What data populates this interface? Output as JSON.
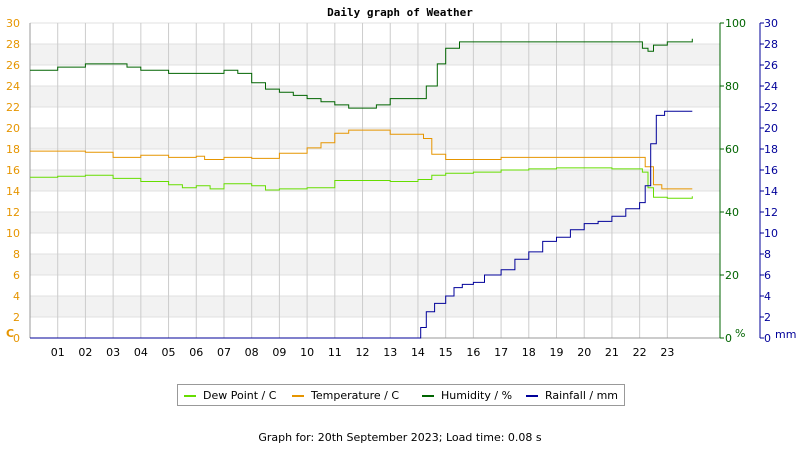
{
  "chart_data": {
    "type": "line",
    "title": "Daily graph of Weather",
    "xlim": [
      -1,
      23.9
    ],
    "x_ticks": [
      "01",
      "02",
      "03",
      "04",
      "05",
      "06",
      "07",
      "08",
      "09",
      "10",
      "11",
      "12",
      "13",
      "14",
      "15",
      "16",
      "17",
      "18",
      "19",
      "20",
      "21",
      "22",
      "23"
    ],
    "left_axis": {
      "unit": "C",
      "ylim": [
        0,
        30
      ],
      "ticks": [
        0,
        2,
        4,
        6,
        8,
        10,
        12,
        14,
        16,
        18,
        20,
        22,
        24,
        26,
        28,
        30
      ],
      "color": "#e69500"
    },
    "humidity_axis": {
      "unit": "%",
      "ylim": [
        0,
        100
      ],
      "ticks": [
        0,
        20,
        40,
        60,
        80,
        100
      ],
      "color": "#006400"
    },
    "rain_axis": {
      "unit": "mm",
      "ylim": [
        0,
        30
      ],
      "ticks": [
        0,
        2,
        4,
        6,
        8,
        10,
        12,
        14,
        16,
        18,
        20,
        22,
        24,
        26,
        28,
        30
      ],
      "color": "#000099"
    },
    "series": [
      {
        "name": "Dew Point / C",
        "axis": "left",
        "color": "#66dd00",
        "points": [
          [
            -1,
            15.3
          ],
          [
            0,
            15.4
          ],
          [
            1,
            15.5
          ],
          [
            2,
            15.2
          ],
          [
            3,
            14.9
          ],
          [
            4,
            14.6
          ],
          [
            4.5,
            14.3
          ],
          [
            5,
            14.5
          ],
          [
            5.5,
            14.2
          ],
          [
            6,
            14.7
          ],
          [
            7,
            14.5
          ],
          [
            7.5,
            14.1
          ],
          [
            8,
            14.2
          ],
          [
            9,
            14.3
          ],
          [
            10,
            15
          ],
          [
            11,
            15
          ],
          [
            12,
            14.9
          ],
          [
            13,
            15.1
          ],
          [
            13.5,
            15.5
          ],
          [
            14,
            15.7
          ],
          [
            14.5,
            15.7
          ],
          [
            15,
            15.8
          ],
          [
            16,
            16
          ],
          [
            17,
            16.1
          ],
          [
            18,
            16.2
          ],
          [
            19,
            16.2
          ],
          [
            20,
            16.1
          ],
          [
            21,
            16.1
          ],
          [
            21.1,
            15.8
          ],
          [
            21.3,
            14.3
          ],
          [
            21.5,
            13.4
          ],
          [
            22,
            13.3
          ],
          [
            22.9,
            13.5
          ]
        ]
      },
      {
        "name": "Temperature / C",
        "axis": "left",
        "color": "#e69500",
        "points": [
          [
            -1,
            17.8
          ],
          [
            0,
            17.8
          ],
          [
            1,
            17.7
          ],
          [
            2,
            17.2
          ],
          [
            3,
            17.4
          ],
          [
            4,
            17.2
          ],
          [
            5,
            17.3
          ],
          [
            5.3,
            17.0
          ],
          [
            6,
            17.2
          ],
          [
            7,
            17.1
          ],
          [
            8,
            17.6
          ],
          [
            9,
            18.1
          ],
          [
            9.5,
            18.6
          ],
          [
            10,
            19.5
          ],
          [
            10.5,
            19.8
          ],
          [
            11,
            19.8
          ],
          [
            12,
            19.4
          ],
          [
            13,
            19.4
          ],
          [
            13.2,
            19.0
          ],
          [
            13.5,
            17.5
          ],
          [
            14,
            17.0
          ],
          [
            15,
            17.0
          ],
          [
            16,
            17.2
          ],
          [
            17,
            17.2
          ],
          [
            18,
            17.2
          ],
          [
            19,
            17.2
          ],
          [
            20,
            17.2
          ],
          [
            21,
            17.2
          ],
          [
            21.2,
            16.3
          ],
          [
            21.5,
            14.6
          ],
          [
            21.8,
            14.2
          ],
          [
            22.9,
            14.2
          ]
        ]
      },
      {
        "name": "Humidity / %",
        "axis": "humidity",
        "color": "#006400",
        "points": [
          [
            -1,
            85
          ],
          [
            0,
            86
          ],
          [
            1,
            87
          ],
          [
            2,
            87
          ],
          [
            2.5,
            86
          ],
          [
            3,
            85
          ],
          [
            4,
            84
          ],
          [
            5,
            84
          ],
          [
            6,
            85
          ],
          [
            6.5,
            84
          ],
          [
            7,
            81
          ],
          [
            7.5,
            79
          ],
          [
            8,
            78
          ],
          [
            8.5,
            77
          ],
          [
            9,
            76
          ],
          [
            9.5,
            75
          ],
          [
            10,
            74
          ],
          [
            10.5,
            73
          ],
          [
            11,
            73
          ],
          [
            11.5,
            74
          ],
          [
            12,
            76
          ],
          [
            13,
            76
          ],
          [
            13.3,
            80
          ],
          [
            13.7,
            87
          ],
          [
            14,
            92
          ],
          [
            14.5,
            94
          ],
          [
            15,
            94
          ],
          [
            16,
            94
          ],
          [
            17,
            94
          ],
          [
            18,
            94
          ],
          [
            19,
            94
          ],
          [
            20,
            94
          ],
          [
            21,
            94
          ],
          [
            21.1,
            92
          ],
          [
            21.3,
            91
          ],
          [
            21.5,
            93
          ],
          [
            22,
            94
          ],
          [
            22.9,
            95
          ]
        ]
      },
      {
        "name": "Rainfall / mm",
        "axis": "rain",
        "color": "#000099",
        "points": [
          [
            -1,
            0
          ],
          [
            12.9,
            0
          ],
          [
            13.1,
            1
          ],
          [
            13.3,
            2.5
          ],
          [
            13.6,
            3.3
          ],
          [
            14,
            4
          ],
          [
            14.3,
            4.8
          ],
          [
            14.6,
            5.1
          ],
          [
            15,
            5.3
          ],
          [
            15.4,
            6
          ],
          [
            16,
            6.5
          ],
          [
            16.5,
            7.5
          ],
          [
            17,
            8.2
          ],
          [
            17.5,
            9.2
          ],
          [
            18,
            9.6
          ],
          [
            18.5,
            10.3
          ],
          [
            19,
            10.9
          ],
          [
            19.5,
            11.1
          ],
          [
            20,
            11.6
          ],
          [
            20.5,
            12.3
          ],
          [
            21,
            12.9
          ],
          [
            21.2,
            14.5
          ],
          [
            21.4,
            18.5
          ],
          [
            21.6,
            21.2
          ],
          [
            21.9,
            21.6
          ],
          [
            22.9,
            21.6
          ]
        ]
      }
    ],
    "grid": true,
    "legend": "bottom-center"
  },
  "footer": "Graph for: 20th September 2023; Load time: 0.08 s"
}
